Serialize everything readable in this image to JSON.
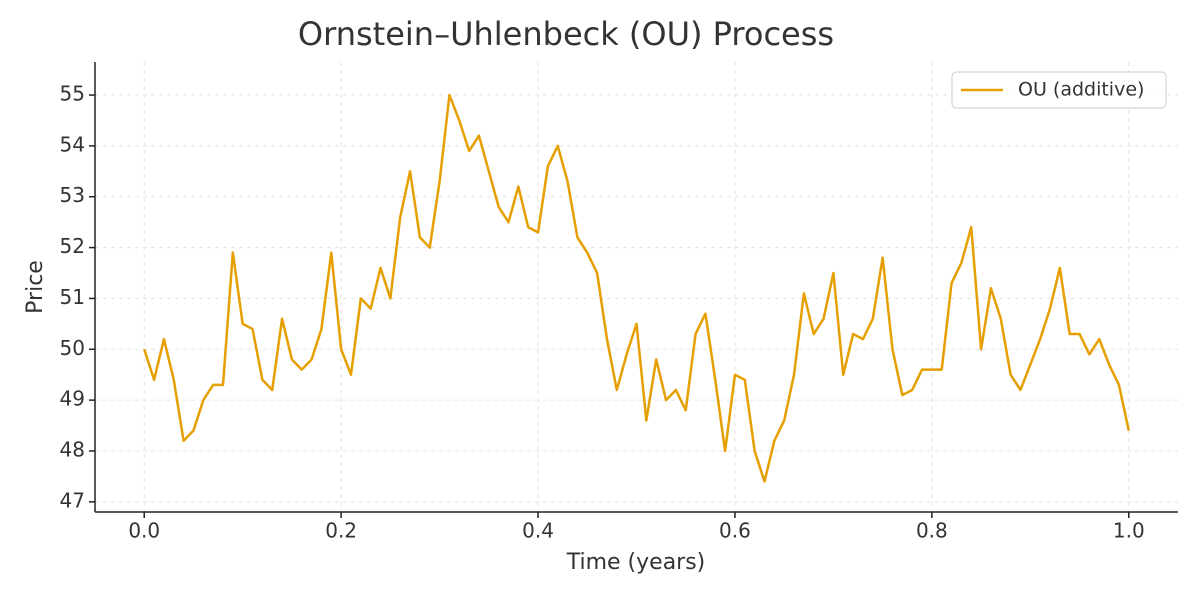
{
  "chart_data": {
    "type": "line",
    "title": "Ornstein–Uhlenbeck (OU) Process",
    "x_label": "Time (years)",
    "y_label": "Price",
    "x": [
      0,
      0.01,
      0.02,
      0.03,
      0.04,
      0.05,
      0.06,
      0.07,
      0.08,
      0.09,
      0.1,
      0.11,
      0.12,
      0.13,
      0.14,
      0.15,
      0.16,
      0.17,
      0.18,
      0.19,
      0.2,
      0.21,
      0.22,
      0.23,
      0.24,
      0.25,
      0.26,
      0.27,
      0.28,
      0.29,
      0.3,
      0.31,
      0.32,
      0.33,
      0.34,
      0.35,
      0.36,
      0.37,
      0.38,
      0.39,
      0.4,
      0.41,
      0.42,
      0.43,
      0.44,
      0.45,
      0.46,
      0.47,
      0.48,
      0.49,
      0.5,
      0.51,
      0.52,
      0.53,
      0.54,
      0.55,
      0.56,
      0.57,
      0.58,
      0.59,
      0.6,
      0.61,
      0.62,
      0.63,
      0.64,
      0.65,
      0.66,
      0.67,
      0.68,
      0.69,
      0.7,
      0.71,
      0.72,
      0.73,
      0.74,
      0.75,
      0.76,
      0.77,
      0.78,
      0.79,
      0.8,
      0.81,
      0.82,
      0.83,
      0.84,
      0.85,
      0.86,
      0.87,
      0.88,
      0.89,
      0.9,
      0.91,
      0.92,
      0.93,
      0.94,
      0.95,
      0.96,
      0.97,
      0.98,
      0.99,
      1.0
    ],
    "series": [
      {
        "name": "OU (additive)",
        "color": "#e69f00",
        "values": [
          50.0,
          49.4,
          50.2,
          49.4,
          48.2,
          48.4,
          49.0,
          49.3,
          49.3,
          51.9,
          50.5,
          50.4,
          49.4,
          49.2,
          50.6,
          49.8,
          49.6,
          49.8,
          50.4,
          51.9,
          50.0,
          49.5,
          51.0,
          50.8,
          51.6,
          51.0,
          52.6,
          53.5,
          52.2,
          52.0,
          53.3,
          55.0,
          54.5,
          53.9,
          54.2,
          53.5,
          52.8,
          52.5,
          53.2,
          52.4,
          52.3,
          53.6,
          54.0,
          53.3,
          52.2,
          51.9,
          51.5,
          50.2,
          49.2,
          49.9,
          50.5,
          48.6,
          49.8,
          49.0,
          49.2,
          48.8,
          50.3,
          50.7,
          49.4,
          48.0,
          49.5,
          49.4,
          48.0,
          47.4,
          48.2,
          48.6,
          49.5,
          51.1,
          50.3,
          50.6,
          51.5,
          49.5,
          50.3,
          50.2,
          50.6,
          51.8,
          50.0,
          49.1,
          49.2,
          49.6,
          49.6,
          49.6,
          51.3,
          51.7,
          52.4,
          50.0,
          51.2,
          50.6,
          49.5,
          49.2,
          49.7,
          50.2,
          50.8,
          51.6,
          50.3,
          50.3,
          49.9,
          50.2,
          49.7,
          49.3,
          48.4
        ]
      }
    ],
    "xlim": [
      -0.05,
      1.05
    ],
    "ylim": [
      46.8,
      55.65
    ],
    "xticks": [
      {
        "value": 0,
        "label": "0.0"
      },
      0.2,
      0.4,
      0.6,
      0.8,
      {
        "value": 1,
        "label": "1.0"
      }
    ],
    "yticks": [
      47,
      48,
      49,
      50,
      51,
      52,
      53,
      54,
      55
    ],
    "grid": true,
    "legend": "upper right"
  }
}
